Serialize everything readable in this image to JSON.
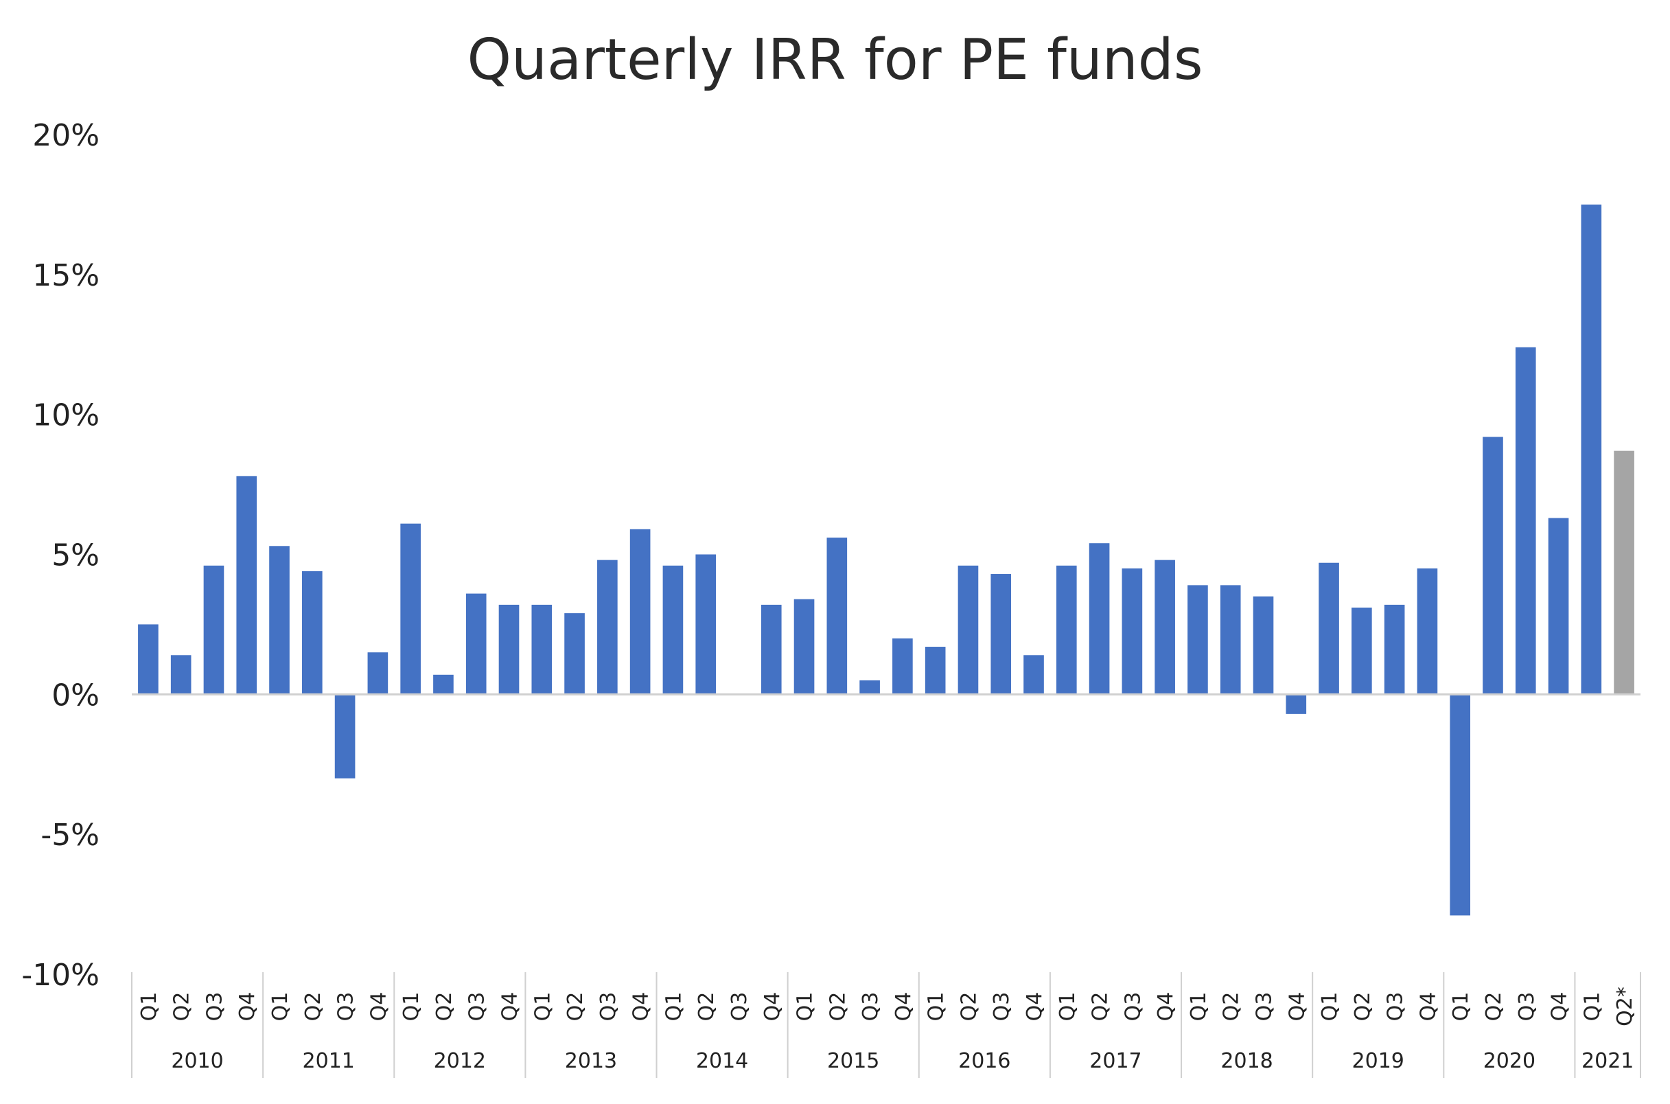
{
  "chart_data": {
    "type": "bar",
    "title": "Quarterly IRR for PE funds",
    "xlabel": "",
    "ylabel": "",
    "ylim": [
      -10,
      20
    ],
    "yticks": [
      "20%",
      "15%",
      "10%",
      "5%",
      "0%",
      "-5%",
      "-10%"
    ],
    "ytick_values": [
      20,
      15,
      10,
      5,
      0,
      -5,
      -10
    ],
    "grid": false,
    "colors": {
      "bar": "#4472C4",
      "estimate": "#A5A5A5",
      "axis": "#D0D0D0"
    },
    "groups": [
      {
        "year": "2010",
        "quarters": [
          "Q1",
          "Q2",
          "Q3",
          "Q4"
        ]
      },
      {
        "year": "2011",
        "quarters": [
          "Q1",
          "Q2",
          "Q3",
          "Q4"
        ]
      },
      {
        "year": "2012",
        "quarters": [
          "Q1",
          "Q2",
          "Q3",
          "Q4"
        ]
      },
      {
        "year": "2013",
        "quarters": [
          "Q1",
          "Q2",
          "Q3",
          "Q4"
        ]
      },
      {
        "year": "2014",
        "quarters": [
          "Q1",
          "Q2",
          "Q3",
          "Q4"
        ]
      },
      {
        "year": "2015",
        "quarters": [
          "Q1",
          "Q2",
          "Q3",
          "Q4"
        ]
      },
      {
        "year": "2016",
        "quarters": [
          "Q1",
          "Q2",
          "Q3",
          "Q4"
        ]
      },
      {
        "year": "2017",
        "quarters": [
          "Q1",
          "Q2",
          "Q3",
          "Q4"
        ]
      },
      {
        "year": "2018",
        "quarters": [
          "Q1",
          "Q2",
          "Q3",
          "Q4"
        ]
      },
      {
        "year": "2019",
        "quarters": [
          "Q1",
          "Q2",
          "Q3",
          "Q4"
        ]
      },
      {
        "year": "2020",
        "quarters": [
          "Q1",
          "Q2",
          "Q3",
          "Q4"
        ]
      },
      {
        "year": "2021",
        "quarters": [
          "Q1",
          "Q2*"
        ]
      }
    ],
    "values": [
      2.5,
      1.4,
      4.6,
      7.8,
      5.3,
      4.4,
      -3.0,
      1.5,
      6.1,
      0.7,
      3.6,
      3.2,
      3.2,
      2.9,
      4.8,
      5.9,
      4.6,
      5.0,
      null,
      3.2,
      3.4,
      5.6,
      0.5,
      2.0,
      1.7,
      4.6,
      4.3,
      1.4,
      4.6,
      5.4,
      4.5,
      4.8,
      3.9,
      3.9,
      3.5,
      -0.7,
      4.7,
      3.1,
      3.2,
      4.5,
      -7.9,
      9.2,
      12.4,
      6.3,
      17.5,
      8.7
    ],
    "estimated": [
      45
    ]
  }
}
